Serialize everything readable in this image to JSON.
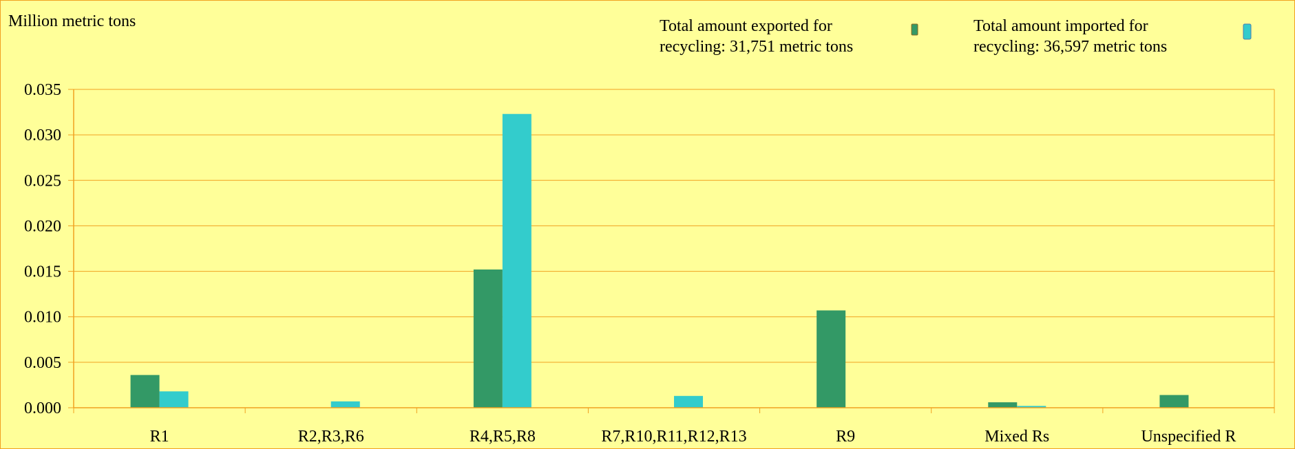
{
  "chart_data": {
    "type": "bar",
    "ylabel": "Million metric tons",
    "categories": [
      "R1",
      "R2,R3,R6",
      "R4,R5,R8",
      "R7,R10,R11,R12,R13",
      "R9",
      "Mixed Rs",
      "Unspecified R"
    ],
    "series": [
      {
        "name": "Total amount exported for recycling: 31,751 metric tons",
        "name_lines": [
          "Total amount exported for",
          "recycling: 31,751 metric tons"
        ],
        "color": "#339966",
        "values": [
          0.0036,
          0.0,
          0.0152,
          0.0,
          0.0107,
          0.0006,
          0.0014
        ]
      },
      {
        "name": "Total amount imported for recycling: 36,597 metric tons",
        "name_lines": [
          "Total amount imported for",
          "recycling: 36,597 metric tons"
        ],
        "color": "#33cccc",
        "values": [
          0.0018,
          0.0007,
          0.0323,
          0.0013,
          0.0,
          0.0002,
          0.0
        ]
      }
    ],
    "ylim": [
      0,
      0.035
    ],
    "yticks": [
      "0.000",
      "0.005",
      "0.010",
      "0.015",
      "0.020",
      "0.025",
      "0.030",
      "0.035"
    ],
    "grid": true,
    "legend_position": "top-right",
    "colors": {
      "background": "#ffff99",
      "gridline": "#f0a020",
      "axis": "#f0a020"
    }
  }
}
